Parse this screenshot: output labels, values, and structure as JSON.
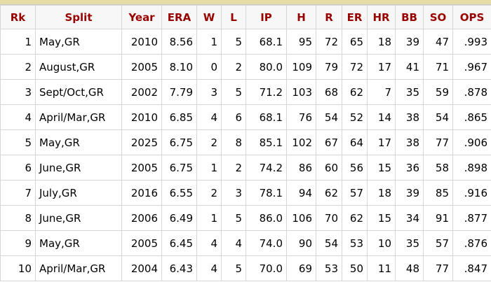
{
  "table": {
    "header": [
      "Rk",
      "Split",
      "Year",
      "ERA",
      "W",
      "L",
      "IP",
      "H",
      "R",
      "ER",
      "HR",
      "BB",
      "SO",
      "OPS"
    ],
    "rows": [
      [
        "1",
        "May,GR",
        "2010",
        "8.56",
        "1",
        "5",
        "68.1",
        "95",
        "72",
        "65",
        "18",
        "39",
        "47",
        ".993"
      ],
      [
        "2",
        "August,GR",
        "2005",
        "8.10",
        "0",
        "2",
        "80.0",
        "109",
        "79",
        "72",
        "17",
        "41",
        "71",
        ".967"
      ],
      [
        "3",
        "Sept/Oct,GR",
        "2002",
        "7.79",
        "3",
        "5",
        "71.2",
        "103",
        "68",
        "62",
        "7",
        "35",
        "59",
        ".878"
      ],
      [
        "4",
        "April/Mar,GR",
        "2010",
        "6.85",
        "4",
        "6",
        "68.1",
        "76",
        "54",
        "52",
        "14",
        "38",
        "54",
        ".865"
      ],
      [
        "5",
        "May,GR",
        "2025",
        "6.75",
        "2",
        "8",
        "85.1",
        "102",
        "67",
        "64",
        "17",
        "38",
        "77",
        ".906"
      ],
      [
        "6",
        "June,GR",
        "2005",
        "6.75",
        "1",
        "2",
        "74.2",
        "86",
        "60",
        "56",
        "15",
        "36",
        "58",
        ".898"
      ],
      [
        "7",
        "July,GR",
        "2016",
        "6.55",
        "2",
        "3",
        "78.1",
        "94",
        "62",
        "57",
        "18",
        "39",
        "85",
        ".916"
      ],
      [
        "8",
        "June,GR",
        "2006",
        "6.49",
        "1",
        "5",
        "86.0",
        "106",
        "70",
        "62",
        "15",
        "34",
        "91",
        ".877"
      ],
      [
        "9",
        "May,GR",
        "2005",
        "6.45",
        "4",
        "4",
        "74.0",
        "90",
        "54",
        "53",
        "10",
        "35",
        "57",
        ".876"
      ],
      [
        "10",
        "April/Mar,GR",
        "2004",
        "6.43",
        "4",
        "5",
        "70.0",
        "69",
        "53",
        "50",
        "11",
        "48",
        "77",
        ".847"
      ]
    ]
  }
}
